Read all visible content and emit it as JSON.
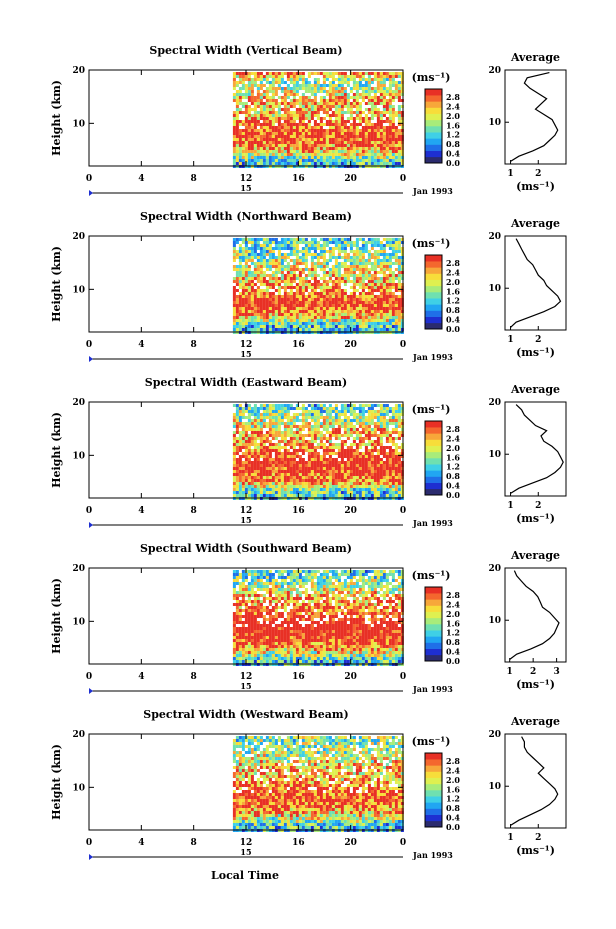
{
  "figure": {
    "xlabel": "Local Time",
    "date_label": "Jan 1993",
    "day_label": "15",
    "colorbar_unit": "(ms⁻¹)",
    "avg_title": "Average",
    "avg_xlabel": "(ms⁻¹)"
  },
  "colorscale": {
    "ticks": [
      "2.8",
      "2.4",
      "2.0",
      "1.6",
      "1.2",
      "0.8",
      "0.4",
      "0.0"
    ],
    "colors": [
      "#2b2b6e",
      "#1e2fd1",
      "#1f6fe8",
      "#21a6f2",
      "#3fd0e6",
      "#6fe0b0",
      "#a8ec7a",
      "#dff050",
      "#f7dd3a",
      "#f7a73a",
      "#f4672e",
      "#e83025"
    ]
  },
  "chart_data": [
    {
      "type": "heatmap",
      "title": "Spectral Width (Vertical Beam)",
      "ylabel": "Height (km)",
      "xlabel": "Local Time",
      "x_ticks": [
        "0",
        "4",
        "8",
        "12",
        "16",
        "20",
        "0"
      ],
      "y_ticks": [
        "10",
        "20"
      ],
      "xlim": [
        0,
        24
      ],
      "ylim": [
        2,
        20
      ],
      "data_start_hour": 11,
      "colorbar": {
        "label": "(ms⁻¹)",
        "range": [
          0,
          2.8
        ]
      },
      "average_profile": {
        "title": "Average",
        "xlabel": "(ms⁻¹)",
        "x_ticks": [
          "1",
          "2"
        ],
        "xlim": [
          0.8,
          3.0
        ],
        "y_ticks": [
          "10",
          "20"
        ],
        "height_km": [
          2.5,
          3.5,
          4.5,
          5.5,
          6.5,
          7.5,
          8.5,
          9.5,
          10.5,
          11.5,
          12.5,
          13.5,
          14.5,
          15.5,
          16.5,
          17.5,
          18.5,
          19.5
        ],
        "width_ms": [
          1.0,
          1.3,
          1.8,
          2.2,
          2.4,
          2.6,
          2.7,
          2.6,
          2.5,
          2.2,
          1.9,
          2.1,
          2.3,
          2.0,
          1.7,
          1.5,
          1.6,
          2.4
        ]
      }
    },
    {
      "type": "heatmap",
      "title": "Spectral Width (Northward Beam)",
      "ylabel": "Height (km)",
      "xlabel": "Local Time",
      "x_ticks": [
        "0",
        "4",
        "8",
        "12",
        "16",
        "20",
        "0"
      ],
      "y_ticks": [
        "10",
        "20"
      ],
      "xlim": [
        0,
        24
      ],
      "ylim": [
        2,
        20
      ],
      "data_start_hour": 11,
      "colorbar": {
        "label": "(ms⁻¹)",
        "range": [
          0,
          2.8
        ]
      },
      "average_profile": {
        "title": "Average",
        "xlabel": "(ms⁻¹)",
        "x_ticks": [
          "1",
          "2"
        ],
        "xlim": [
          0.8,
          3.0
        ],
        "y_ticks": [
          "10",
          "20"
        ],
        "height_km": [
          2.5,
          3.5,
          4.5,
          5.5,
          6.5,
          7.5,
          8.5,
          9.5,
          10.5,
          11.5,
          12.5,
          13.5,
          14.5,
          15.5,
          16.5,
          17.5,
          18.5,
          19.5
        ],
        "width_ms": [
          1.0,
          1.2,
          1.7,
          2.2,
          2.6,
          2.8,
          2.7,
          2.5,
          2.3,
          2.2,
          2.0,
          1.9,
          1.8,
          1.6,
          1.5,
          1.4,
          1.3,
          1.2
        ]
      }
    },
    {
      "type": "heatmap",
      "title": "Spectral Width (Eastward Beam)",
      "ylabel": "Height (km)",
      "xlabel": "Local Time",
      "x_ticks": [
        "0",
        "4",
        "8",
        "12",
        "16",
        "20",
        "0"
      ],
      "y_ticks": [
        "10",
        "20"
      ],
      "xlim": [
        0,
        24
      ],
      "ylim": [
        2,
        20
      ],
      "data_start_hour": 11,
      "colorbar": {
        "label": "(ms⁻¹)",
        "range": [
          0,
          2.8
        ]
      },
      "average_profile": {
        "title": "Average",
        "xlabel": "(ms⁻¹)",
        "x_ticks": [
          "1",
          "2"
        ],
        "xlim": [
          0.8,
          3.0
        ],
        "y_ticks": [
          "10",
          "20"
        ],
        "height_km": [
          2.5,
          3.5,
          4.5,
          5.5,
          6.5,
          7.5,
          8.5,
          9.5,
          10.5,
          11.5,
          12.5,
          13.5,
          14.5,
          15.5,
          16.5,
          17.5,
          18.5,
          19.5
        ],
        "width_ms": [
          1.0,
          1.3,
          1.8,
          2.3,
          2.6,
          2.8,
          2.9,
          2.8,
          2.7,
          2.5,
          2.2,
          2.1,
          2.3,
          1.9,
          1.7,
          1.5,
          1.4,
          1.2
        ]
      }
    },
    {
      "type": "heatmap",
      "title": "Spectral Width (Southward Beam)",
      "ylabel": "Height (km)",
      "xlabel": "Local Time",
      "x_ticks": [
        "0",
        "4",
        "8",
        "12",
        "16",
        "20",
        "0"
      ],
      "y_ticks": [
        "10",
        "20"
      ],
      "xlim": [
        0,
        24
      ],
      "ylim": [
        2,
        20
      ],
      "data_start_hour": 11,
      "colorbar": {
        "label": "(ms⁻¹)",
        "range": [
          0,
          2.8
        ]
      },
      "average_profile": {
        "title": "Average",
        "xlabel": "(ms⁻¹)",
        "x_ticks": [
          "1",
          "2",
          "3"
        ],
        "xlim": [
          0.8,
          3.4
        ],
        "y_ticks": [
          "10",
          "20"
        ],
        "height_km": [
          2.5,
          3.5,
          4.5,
          5.5,
          6.5,
          7.5,
          8.5,
          9.5,
          10.5,
          11.5,
          12.5,
          13.5,
          14.5,
          15.5,
          16.5,
          17.5,
          18.5,
          19.5
        ],
        "width_ms": [
          1.0,
          1.3,
          1.9,
          2.4,
          2.7,
          2.9,
          3.0,
          3.1,
          2.9,
          2.7,
          2.4,
          2.3,
          2.2,
          2.0,
          1.7,
          1.5,
          1.3,
          1.2
        ]
      }
    },
    {
      "type": "heatmap",
      "title": "Spectral Width (Westward Beam)",
      "ylabel": "Height (km)",
      "xlabel": "Local Time",
      "x_ticks": [
        "0",
        "4",
        "8",
        "12",
        "16",
        "20",
        "0"
      ],
      "y_ticks": [
        "10",
        "20"
      ],
      "xlim": [
        0,
        24
      ],
      "ylim": [
        2,
        20
      ],
      "data_start_hour": 11,
      "colorbar": {
        "label": "(ms⁻¹)",
        "range": [
          0,
          2.8
        ]
      },
      "average_profile": {
        "title": "Average",
        "xlabel": "(ms⁻¹)",
        "x_ticks": [
          "1",
          "2"
        ],
        "xlim": [
          0.8,
          3.0
        ],
        "y_ticks": [
          "10",
          "20"
        ],
        "height_km": [
          2.5,
          3.5,
          4.5,
          5.5,
          6.5,
          7.5,
          8.5,
          9.5,
          10.5,
          11.5,
          12.5,
          13.5,
          14.5,
          15.5,
          16.5,
          17.5,
          18.5,
          19.5
        ],
        "width_ms": [
          1.0,
          1.3,
          1.7,
          2.1,
          2.4,
          2.6,
          2.7,
          2.6,
          2.4,
          2.2,
          2.0,
          2.2,
          2.0,
          1.8,
          1.6,
          1.5,
          1.5,
          1.4
        ]
      }
    }
  ]
}
